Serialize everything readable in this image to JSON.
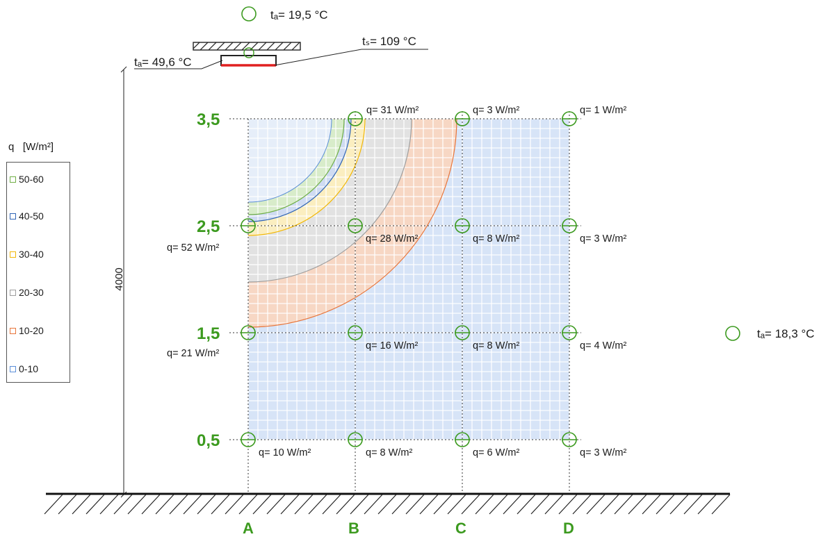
{
  "legend": {
    "title_q": "q",
    "title_unit": "[W/m²]",
    "items": [
      {
        "label": "50-60",
        "color": "#6fae45"
      },
      {
        "label": "40-50",
        "color": "#2f64b5"
      },
      {
        "label": "30-40",
        "color": "#f2b705"
      },
      {
        "label": "20-30",
        "color": "#9e9e9e"
      },
      {
        "label": "10-20",
        "color": "#e8753a"
      },
      {
        "label": "0-10",
        "color": "#5b8ed8"
      }
    ]
  },
  "annotations": {
    "ta_top": "tₐ= 19,5 °C",
    "ta_heater": "tₐ= 49,6 °C",
    "ts_heater": "tₛ= 109 °C",
    "ta_right": "tₐ= 18,3 °C",
    "height_dim": "4000"
  },
  "columns": [
    "A",
    "B",
    "C",
    "D"
  ],
  "levels": [
    "3,5",
    "2,5",
    "1,5",
    "0,5"
  ],
  "measurements": [
    {
      "level": "3,5",
      "col": "B",
      "text": "q= 31 W/m²",
      "value": 31
    },
    {
      "level": "3,5",
      "col": "C",
      "text": "q= 3 W/m²",
      "value": 3
    },
    {
      "level": "3,5",
      "col": "D",
      "text": "q= 1 W/m²",
      "value": 1
    },
    {
      "level": "2,5",
      "col": "A",
      "text": "q= 52 W/m²",
      "value": 52
    },
    {
      "level": "2,5",
      "col": "B",
      "text": "q= 28 W/m²",
      "value": 28
    },
    {
      "level": "2,5",
      "col": "C",
      "text": "q= 8 W/m²",
      "value": 8
    },
    {
      "level": "2,5",
      "col": "D",
      "text": "q= 3 W/m²",
      "value": 3
    },
    {
      "level": "1,5",
      "col": "A",
      "text": "q= 21 W/m²",
      "value": 21
    },
    {
      "level": "1,5",
      "col": "B",
      "text": "q= 16 W/m²",
      "value": 16
    },
    {
      "level": "1,5",
      "col": "C",
      "text": "q= 8 W/m²",
      "value": 8
    },
    {
      "level": "1,5",
      "col": "D",
      "text": "q= 4 W/m²",
      "value": 4
    },
    {
      "level": "0,5",
      "col": "A",
      "text": "q= 10 W/m²",
      "value": 10
    },
    {
      "level": "0,5",
      "col": "B",
      "text": "q= 8 W/m²",
      "value": 8
    },
    {
      "level": "0,5",
      "col": "C",
      "text": "q= 6 W/m²",
      "value": 6
    },
    {
      "level": "0,5",
      "col": "D",
      "text": "q= 3 W/m²",
      "value": 3
    }
  ],
  "colors": {
    "accent_green": "#3c9a1f",
    "heater_red": "#e02020"
  }
}
